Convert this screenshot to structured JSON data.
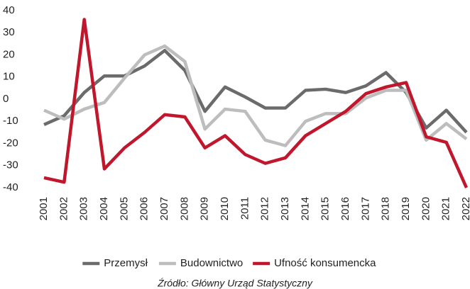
{
  "chart_data": {
    "type": "line",
    "x": [
      "2001",
      "2002",
      "2003",
      "2004",
      "2005",
      "2006",
      "2007",
      "2008",
      "2009",
      "2010",
      "2011",
      "2012",
      "2013",
      "2014",
      "2015",
      "2016",
      "2017",
      "2018",
      "2019",
      "2020",
      "2021",
      "2022"
    ],
    "series": [
      {
        "name": "Przemysł",
        "color": "#6b6b6b",
        "values": [
          -11.5,
          -7.5,
          3,
          10.5,
          10.5,
          15,
          22,
          13,
          -5.5,
          5.5,
          1,
          -4,
          -4,
          4,
          4.5,
          3,
          6,
          12,
          3,
          -13,
          -5,
          -15
        ]
      },
      {
        "name": "Budownictwo",
        "color": "#bdbdbd",
        "values": [
          -5,
          -9,
          -4.5,
          -1.5,
          9.5,
          20,
          24,
          17,
          -13.5,
          -4.5,
          -5.5,
          -18.5,
          -21,
          -10,
          -6.5,
          -6.5,
          0.5,
          4,
          4,
          -18.5,
          -11,
          -18
        ]
      },
      {
        "name": "Ufność konsumencka",
        "color": "#c0172d",
        "values": [
          -35.5,
          -37.5,
          36,
          -31.5,
          -22,
          -15,
          -7,
          -8,
          -22,
          -16.5,
          -25,
          -29,
          -26.5,
          -16.5,
          -11,
          -5.5,
          2.5,
          5.5,
          7.5,
          -17,
          -19.5,
          -40
        ]
      }
    ],
    "ylim": [
      -40,
      40
    ],
    "yticks": [
      -40,
      -30,
      -20,
      -10,
      0,
      10,
      20,
      30,
      40
    ],
    "grid": false,
    "legend": "bottom",
    "source": "Źródło: Główny Urząd Statystyczny"
  }
}
